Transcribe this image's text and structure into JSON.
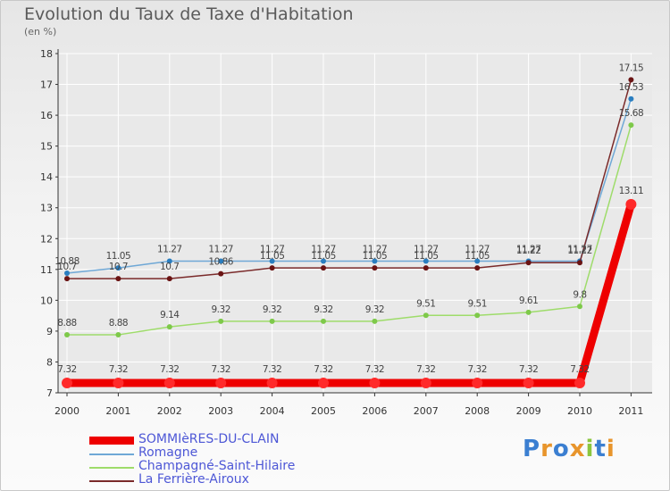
{
  "colors": {
    "title": "#5a5a5a",
    "axis": "#333333",
    "gridline": "#ffffff",
    "legend_text": "#4d57d6"
  },
  "brand": {
    "letters": [
      "P",
      "r",
      "o",
      "x",
      "i",
      "t",
      "i"
    ],
    "colors": [
      "#3b7fd1",
      "#e8952c",
      "#3b7fd1",
      "#e8952c",
      "#8bc63e",
      "#3b7fd1",
      "#e8952c"
    ]
  },
  "chart_data": {
    "type": "line",
    "title": "Evolution du Taux de Taxe d'Habitation",
    "subtitle": "(en %)",
    "xlabel": "",
    "ylabel": "",
    "x": [
      "2000",
      "2001",
      "2002",
      "2003",
      "2004",
      "2005",
      "2006",
      "2007",
      "2008",
      "2009",
      "2010",
      "2011"
    ],
    "ylim": [
      7,
      18
    ],
    "yticks": [
      "7",
      "8",
      "9",
      "10",
      "11",
      "12",
      "13",
      "14",
      "15",
      "16",
      "17",
      "18"
    ],
    "grid": true,
    "legend": "bottom-left",
    "series": [
      {
        "name": "SOMMIèRES-DU-CLAIN",
        "color": "#ee0000",
        "dot": "#ff2a2a",
        "width": 9,
        "r": 6,
        "values": [
          7.32,
          7.32,
          7.32,
          7.32,
          7.32,
          7.32,
          7.32,
          7.32,
          7.32,
          7.32,
          7.32,
          13.11
        ],
        "labels": [
          "7.32",
          "7.32",
          "7.32",
          "7.32",
          "7.32",
          "7.32",
          "7.32",
          "7.32",
          "7.32",
          "7.32",
          "7.32",
          "13.11"
        ]
      },
      {
        "name": "Romagne",
        "color": "#6fa8d6",
        "dot": "#2a7ec0",
        "width": 1.5,
        "r": 3,
        "values": [
          10.88,
          11.05,
          11.27,
          11.27,
          11.27,
          11.27,
          11.27,
          11.27,
          11.27,
          11.27,
          11.27,
          16.53
        ],
        "labels": [
          "10.88",
          "11.05",
          "11.27",
          "11.27",
          "11.27",
          "11.27",
          "11.27",
          "11.27",
          "11.27",
          "11.27",
          "11.27",
          "16.53"
        ]
      },
      {
        "name": "Champagné-Saint-Hilaire",
        "color": "#9edc6a",
        "dot": "#7ec94a",
        "width": 1.5,
        "r": 3,
        "values": [
          8.88,
          8.88,
          9.14,
          9.32,
          9.32,
          9.32,
          9.32,
          9.51,
          9.51,
          9.61,
          9.8,
          15.68
        ],
        "labels": [
          "8.88",
          "8.88",
          "9.14",
          "9.32",
          "9.32",
          "9.32",
          "9.32",
          "9.51",
          "9.51",
          "9.61",
          "9.8",
          "15.68"
        ]
      },
      {
        "name": "La Ferrière-Airoux",
        "color": "#7a2a2a",
        "dot": "#6a1414",
        "width": 1.5,
        "r": 3,
        "values": [
          10.7,
          10.7,
          10.7,
          10.86,
          11.05,
          11.05,
          11.05,
          11.05,
          11.05,
          11.22,
          11.22,
          17.15
        ],
        "labels": [
          "10.7",
          "10.7",
          "10.7",
          "10.86",
          "11.05",
          "11.05",
          "11.05",
          "11.05",
          "11.05",
          "11.22",
          "11.22",
          "17.15"
        ]
      }
    ]
  }
}
